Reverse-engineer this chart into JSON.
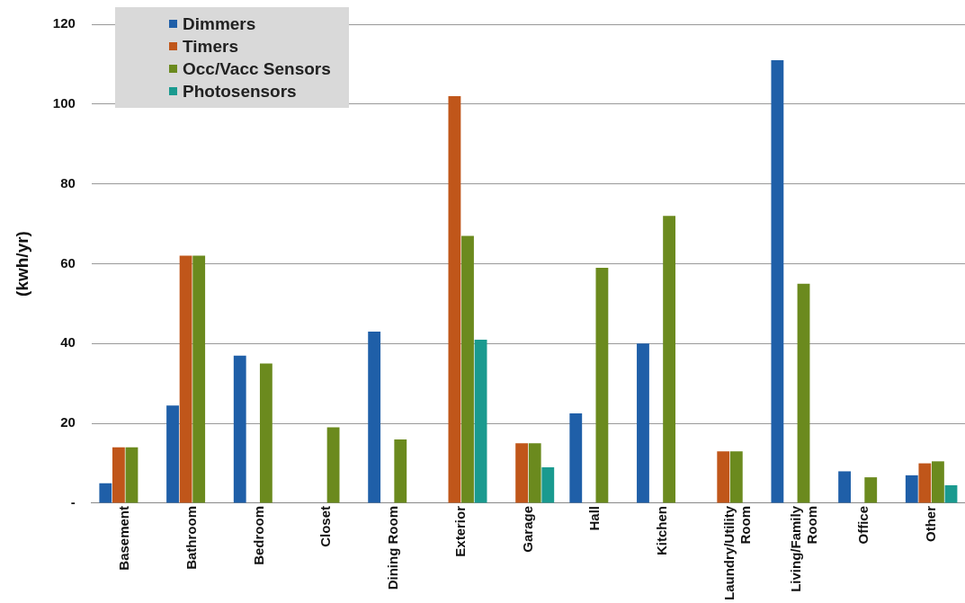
{
  "chart_data": {
    "type": "bar",
    "ylabel": "(kwh/yr)",
    "categories": [
      "Basement",
      "Bathroom",
      "Bedroom",
      "Closet",
      "Dining Room",
      "Exterior",
      "Garage",
      "Hall",
      "Kitchen",
      "Laundry/Utility Room",
      "Living/Family Room",
      "Office",
      "Other"
    ],
    "series": [
      {
        "name": "Dimmers",
        "color": "#1f5fa8",
        "values": [
          5,
          24.5,
          37,
          null,
          43,
          null,
          null,
          22.5,
          40,
          null,
          111,
          8,
          7
        ]
      },
      {
        "name": "Timers",
        "color": "#c0561a",
        "values": [
          14,
          62,
          null,
          null,
          null,
          102,
          15,
          null,
          null,
          13,
          null,
          null,
          10
        ]
      },
      {
        "name": "Occ/Vacc Sensors",
        "color": "#6b8a1e",
        "values": [
          14,
          62,
          35,
          19,
          16,
          67,
          15,
          59,
          72,
          13,
          55,
          6.5,
          10.5
        ]
      },
      {
        "name": "Photosensors",
        "color": "#1a9a8f",
        "values": [
          null,
          null,
          null,
          null,
          null,
          41,
          9,
          null,
          null,
          null,
          null,
          null,
          4.5
        ]
      }
    ],
    "ylim": [
      0,
      120
    ],
    "yticks": [
      {
        "value": 0,
        "label": "-"
      },
      20,
      40,
      60,
      80,
      100,
      120
    ],
    "grid": "y",
    "legend": "top left"
  }
}
